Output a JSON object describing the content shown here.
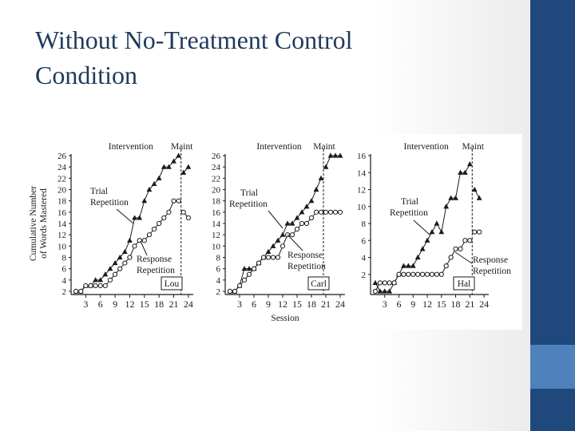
{
  "slide": {
    "title_line1": "Without No-Treatment Control",
    "title_line2": "Condition",
    "colors": {
      "panel_dark": "#1f497d",
      "panel_light": "#4f81bd",
      "title": "#1f3a5c",
      "ink": "#1a1a1a"
    }
  },
  "chart_data": [
    {
      "type": "line",
      "participant": "Lou",
      "phase_labels": [
        "Intervention",
        "Maint"
      ],
      "phase_change_after_session": 22,
      "xlim": [
        0,
        25
      ],
      "x_ticks": [
        3,
        6,
        9,
        12,
        15,
        18,
        21,
        24
      ],
      "ylim": [
        2,
        26
      ],
      "y_ticks": [
        2,
        4,
        6,
        8,
        10,
        12,
        14,
        16,
        18,
        20,
        22,
        24,
        26
      ],
      "ylabel": "Cumulative Number of Words Mastered",
      "series": [
        {
          "name": "Trial Repetition",
          "marker": "triangle",
          "x": [
            1,
            2,
            3,
            4,
            5,
            6,
            7,
            8,
            9,
            10,
            11,
            12,
            13,
            14,
            15,
            16,
            17,
            18,
            19,
            20,
            21,
            22,
            23,
            24
          ],
          "y": [
            2,
            2,
            3,
            3,
            4,
            4,
            5,
            6,
            7,
            8,
            9,
            11,
            15,
            15,
            18,
            20,
            21,
            22,
            24,
            24,
            25,
            26,
            23,
            24
          ]
        },
        {
          "name": "Response Repetition",
          "marker": "circle",
          "x": [
            1,
            2,
            3,
            4,
            5,
            6,
            7,
            8,
            9,
            10,
            11,
            12,
            13,
            14,
            15,
            16,
            17,
            18,
            19,
            20,
            21,
            22,
            23,
            24
          ],
          "y": [
            2,
            2,
            3,
            3,
            3,
            3,
            3,
            4,
            5,
            6,
            7,
            8,
            10,
            11,
            11,
            12,
            13,
            14,
            15,
            16,
            18,
            18,
            16,
            15
          ]
        }
      ],
      "annotations": [
        "Trial Repetition",
        "Response Repetition"
      ]
    },
    {
      "type": "line",
      "participant": "Carl",
      "phase_labels": [
        "Intervention",
        "Maint"
      ],
      "phase_change_after_session": 20,
      "xlim": [
        0,
        25
      ],
      "x_ticks": [
        3,
        6,
        9,
        12,
        15,
        18,
        21,
        24
      ],
      "ylim": [
        2,
        26
      ],
      "y_ticks": [
        2,
        4,
        6,
        8,
        10,
        12,
        14,
        16,
        18,
        20,
        22,
        24,
        26
      ],
      "xlabel": "Session",
      "series": [
        {
          "name": "Trial Repetition",
          "marker": "triangle",
          "x": [
            1,
            2,
            3,
            4,
            5,
            6,
            7,
            8,
            9,
            10,
            11,
            12,
            13,
            14,
            15,
            16,
            17,
            18,
            19,
            20,
            21,
            22,
            23,
            24
          ],
          "y": [
            2,
            2,
            3,
            6,
            6,
            6,
            7,
            8,
            9,
            10,
            11,
            12,
            14,
            14,
            15,
            16,
            17,
            18,
            20,
            22,
            24,
            26,
            26,
            26
          ]
        },
        {
          "name": "Response Repetition",
          "marker": "circle",
          "x": [
            1,
            2,
            3,
            4,
            5,
            6,
            7,
            8,
            9,
            10,
            11,
            12,
            13,
            14,
            15,
            16,
            17,
            18,
            19,
            20,
            21,
            22,
            23,
            24
          ],
          "y": [
            2,
            2,
            3,
            4,
            5,
            6,
            7,
            8,
            8,
            8,
            8,
            10,
            12,
            12,
            13,
            14,
            14,
            15,
            16,
            16,
            16,
            16,
            16,
            16
          ]
        }
      ],
      "annotations": [
        "Trial Repetition",
        "Response Repetition"
      ]
    },
    {
      "type": "line",
      "participant": "Hal",
      "phase_labels": [
        "Intervention",
        "Maint"
      ],
      "phase_change_after_session": 21,
      "xlim": [
        0,
        25
      ],
      "x_ticks": [
        3,
        6,
        9,
        12,
        15,
        18,
        21,
        24
      ],
      "ylim": [
        0,
        16
      ],
      "y_ticks": [
        2,
        4,
        6,
        8,
        10,
        12,
        14,
        16
      ],
      "series": [
        {
          "name": "Trial Repetition",
          "marker": "triangle",
          "x": [
            1,
            2,
            3,
            4,
            5,
            6,
            7,
            8,
            9,
            10,
            11,
            12,
            13,
            14,
            15,
            16,
            17,
            18,
            19,
            20,
            21,
            22,
            23
          ],
          "y": [
            1,
            0,
            0,
            0,
            1,
            2,
            3,
            3,
            3,
            4,
            5,
            6,
            7,
            8,
            7,
            10,
            11,
            11,
            14,
            14,
            15,
            12,
            11
          ]
        },
        {
          "name": "Response Repetition",
          "marker": "circle",
          "x": [
            1,
            2,
            3,
            4,
            5,
            6,
            7,
            8,
            9,
            10,
            11,
            12,
            13,
            14,
            15,
            16,
            17,
            18,
            19,
            20,
            21,
            22,
            23
          ],
          "y": [
            0,
            1,
            1,
            1,
            1,
            2,
            2,
            2,
            2,
            2,
            2,
            2,
            2,
            2,
            2,
            3,
            4,
            5,
            5,
            6,
            6,
            7,
            7
          ]
        }
      ],
      "annotations": [
        "Trial Repetition",
        "Response Repetition"
      ]
    }
  ]
}
